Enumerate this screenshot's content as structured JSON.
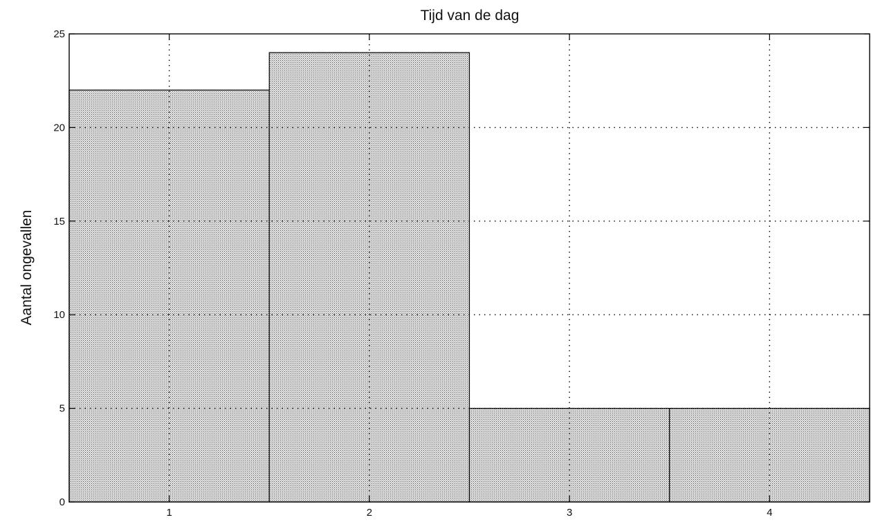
{
  "chart_data": {
    "type": "bar",
    "title": "Tijd van de dag",
    "xlabel": "",
    "ylabel": "Aantal ongevallen",
    "categories": [
      "1",
      "2",
      "3",
      "4"
    ],
    "values": [
      22,
      24,
      5,
      5
    ],
    "ylim": [
      0,
      25
    ],
    "yticks": [
      0,
      5,
      10,
      15,
      20,
      25
    ],
    "grid": true,
    "legend": "none",
    "colors": {
      "bar_fill": "#d9d9d9",
      "bar_stroke": "#000000",
      "grid": "#000000",
      "axis": "#000000"
    }
  }
}
